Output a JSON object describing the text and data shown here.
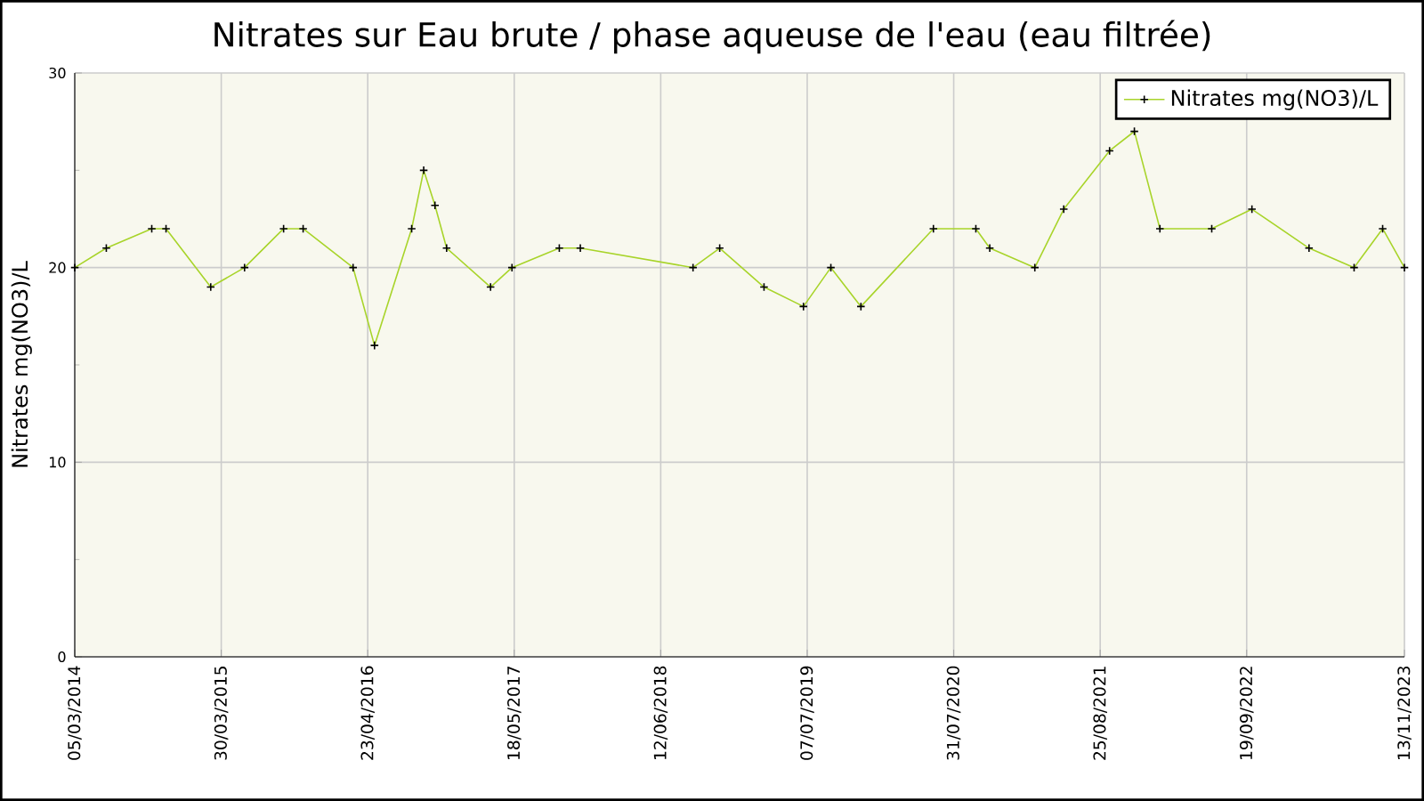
{
  "chart_data": {
    "type": "line",
    "title": "Nitrates sur Eau brute / phase aqueuse de l'eau (eau filtrée)",
    "ylabel": "Nitrates mg(NO3)/L",
    "x": [
      "2014-03-05",
      "2014-05-28",
      "2014-09-26",
      "2014-11-03",
      "2015-03-02",
      "2015-05-31",
      "2015-09-12",
      "2015-11-03",
      "2016-03-15",
      "2016-05-11",
      "2016-08-18",
      "2016-09-19",
      "2016-10-19",
      "2016-11-19",
      "2017-03-16",
      "2017-05-12",
      "2017-09-15",
      "2017-11-10",
      "2018-09-06",
      "2018-11-16",
      "2019-03-14",
      "2019-06-27",
      "2019-09-08",
      "2019-11-27",
      "2020-06-07",
      "2020-09-28",
      "2020-11-04",
      "2021-03-04",
      "2021-05-20",
      "2021-09-19",
      "2021-11-24",
      "2022-01-31",
      "2022-06-18",
      "2022-10-03",
      "2023-03-04",
      "2023-07-02",
      "2023-09-16",
      "2023-11-13"
    ],
    "series": [
      {
        "name": "Nitrates mg(NO3)/L",
        "color": "#a8d42a",
        "values": [
          20,
          21,
          22,
          22,
          19,
          20,
          22,
          22,
          20,
          16,
          22,
          25,
          23.2,
          21,
          19,
          20,
          21,
          21,
          20,
          21,
          19,
          18,
          20,
          18,
          22,
          22,
          21,
          20,
          23,
          26,
          27,
          22,
          22,
          23,
          21,
          20,
          22,
          20
        ]
      }
    ],
    "xlim": [
      "2014-03-05",
      "2023-11-13"
    ],
    "xticks": [
      {
        "value": "2014-03-05",
        "label": "05/03/2014"
      },
      {
        "value": "2015-03-30",
        "label": "30/03/2015"
      },
      {
        "value": "2016-04-23",
        "label": "23/04/2016"
      },
      {
        "value": "2017-05-18",
        "label": "18/05/2017"
      },
      {
        "value": "2018-06-12",
        "label": "12/06/2018"
      },
      {
        "value": "2019-07-07",
        "label": "07/07/2019"
      },
      {
        "value": "2020-07-31",
        "label": "31/07/2020"
      },
      {
        "value": "2021-08-25",
        "label": "25/08/2021"
      },
      {
        "value": "2022-09-19",
        "label": "19/09/2022"
      },
      {
        "value": "2023-11-13",
        "label": "13/11/2023"
      }
    ],
    "ylim": [
      0,
      30
    ],
    "yticks": [
      0,
      10,
      20,
      30
    ],
    "grid": true,
    "legend": "top right",
    "marker": "cross",
    "line_style": "solid"
  }
}
